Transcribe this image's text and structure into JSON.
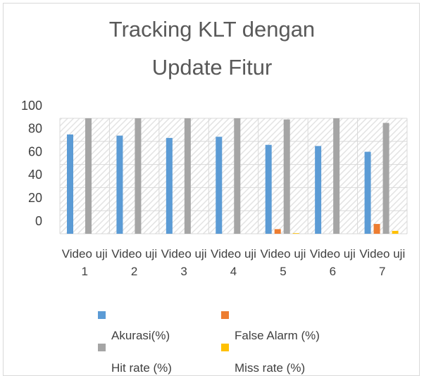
{
  "chart_data": {
    "type": "bar",
    "title": [
      "Tracking KLT dengan",
      "Update Fitur"
    ],
    "categories": [
      "Video uji 1",
      "Video uji 2",
      "Video uji 3",
      "Video uji 4",
      "Video uji 5",
      "Video uji 6",
      "Video uji 7"
    ],
    "series": [
      {
        "name": "Akurasi(%)",
        "color": "#5b9bd5",
        "values": [
          86,
          85,
          83,
          84,
          77,
          76,
          71
        ]
      },
      {
        "name": "False Alarm (%)",
        "color": "#ed7d31",
        "values": [
          0,
          0,
          0,
          0,
          4,
          0,
          8.5
        ]
      },
      {
        "name": "Hit rate (%)",
        "color": "#a5a5a5",
        "values": [
          100,
          100,
          100,
          100,
          99,
          100,
          96
        ]
      },
      {
        "name": "Miss rate (%)",
        "color": "#ffc000",
        "values": [
          0,
          0,
          0,
          0,
          0.5,
          0,
          2.5
        ]
      }
    ],
    "ylim": [
      0,
      100
    ],
    "yticks": [
      0,
      20,
      40,
      60,
      80,
      100
    ],
    "grid": true
  }
}
